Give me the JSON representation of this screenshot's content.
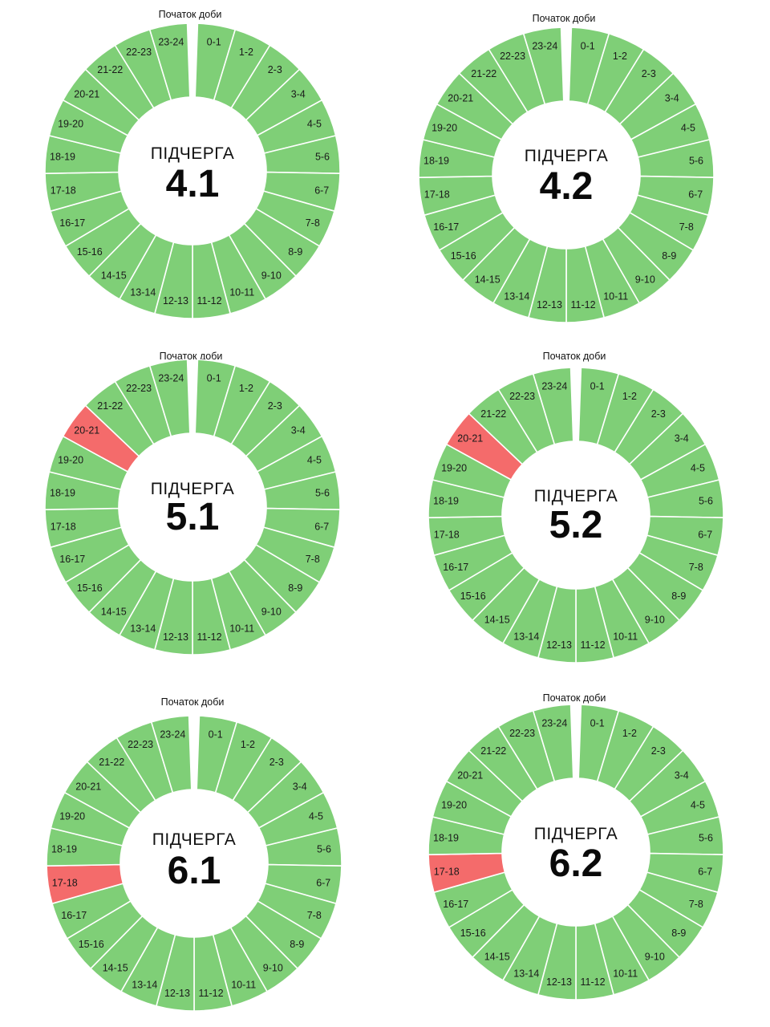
{
  "hours": [
    "0-1",
    "1-2",
    "2-3",
    "3-4",
    "4-5",
    "5-6",
    "6-7",
    "7-8",
    "8-9",
    "9-10",
    "10-11",
    "11-12",
    "12-13",
    "13-14",
    "14-15",
    "15-16",
    "16-17",
    "17-18",
    "18-19",
    "19-20",
    "20-21",
    "21-22",
    "22-23",
    "23-24"
  ],
  "colors": {
    "available": "#7fcf77",
    "outage": "#f46b6b"
  },
  "chart_data": [
    {
      "type": "pie",
      "top_label": "Початок доби",
      "title_word": "ПІДЧЕРГА",
      "queue": "4.1",
      "categories_ref": "hours",
      "outage_hours": []
    },
    {
      "type": "pie",
      "top_label": "Початок доби",
      "title_word": "ПІДЧЕРГА",
      "queue": "4.2",
      "categories_ref": "hours",
      "outage_hours": []
    },
    {
      "type": "pie",
      "top_label": "Початок доби",
      "title_word": "ПІДЧЕРГА",
      "queue": "5.1",
      "categories_ref": "hours",
      "outage_hours": [
        "20-21"
      ]
    },
    {
      "type": "pie",
      "top_label": "Початок доби",
      "title_word": "ПІДЧЕРГА",
      "queue": "5.2",
      "categories_ref": "hours",
      "outage_hours": [
        "20-21"
      ]
    },
    {
      "type": "pie",
      "top_label": "Початок доби",
      "title_word": "ПІДЧЕРГА",
      "queue": "6.1",
      "categories_ref": "hours",
      "outage_hours": [
        "17-18"
      ]
    },
    {
      "type": "pie",
      "top_label": "Початок доби",
      "title_word": "ПІДЧЕРГА",
      "queue": "6.2",
      "categories_ref": "hours",
      "outage_hours": [
        "17-18"
      ]
    }
  ]
}
